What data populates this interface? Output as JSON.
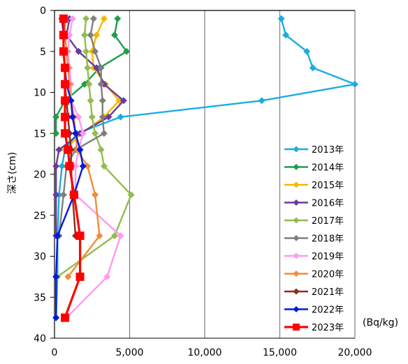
{
  "chart_data": {
    "type": "line",
    "orientation": "vertical-profile",
    "title": "",
    "xlabel": "",
    "ylabel": "深さ(cm)",
    "unit_label": "(Bq/kg)",
    "xlim": [
      0,
      20000
    ],
    "ylim": [
      0,
      40
    ],
    "y_inverted": true,
    "x_ticks": [
      0,
      5000,
      10000,
      15000,
      20000
    ],
    "x_tick_labels": [
      "0",
      "5,000",
      "10,000",
      "15,000",
      "20,000"
    ],
    "y_ticks": [
      0,
      5,
      10,
      15,
      20,
      25,
      30,
      35,
      40
    ],
    "y_tick_labels": [
      "0",
      "5",
      "10",
      "15",
      "20",
      "25",
      "30",
      "35",
      "40"
    ],
    "grid": "vertical",
    "grid_color": "#7f7f7f",
    "legend_position": "right",
    "series": [
      {
        "name": "2013年",
        "color": "#1aade0",
        "marker": "diamond",
        "points": [
          [
            15100,
            1
          ],
          [
            15400,
            3
          ],
          [
            16800,
            5
          ],
          [
            17200,
            7
          ],
          [
            20000,
            9
          ],
          [
            13800,
            11
          ],
          [
            4400,
            13
          ],
          [
            1500,
            15
          ],
          [
            700,
            17
          ],
          [
            500,
            19
          ],
          [
            300,
            22.5
          ],
          [
            200,
            27.5
          ],
          [
            200,
            32.5
          ],
          [
            100,
            37.5
          ]
        ]
      },
      {
        "name": "2014年",
        "color": "#1c9e4b",
        "marker": "diamond",
        "points": [
          [
            4200,
            1
          ],
          [
            4000,
            3
          ],
          [
            4800,
            5
          ],
          [
            3000,
            7
          ],
          [
            2000,
            9
          ],
          [
            700,
            11
          ],
          [
            100,
            13
          ],
          [
            100,
            15
          ]
        ]
      },
      {
        "name": "2015年",
        "color": "#f5b800",
        "marker": "diamond",
        "points": [
          [
            3300,
            1
          ],
          [
            2800,
            3
          ],
          [
            2500,
            5
          ],
          [
            2600,
            7
          ],
          [
            3400,
            9
          ],
          [
            4300,
            11
          ],
          [
            3300,
            13
          ],
          [
            1800,
            15
          ],
          [
            700,
            17
          ]
        ]
      },
      {
        "name": "2016年",
        "color": "#6a3a9c",
        "marker": "diamond",
        "points": [
          [
            1000,
            1
          ],
          [
            800,
            3
          ],
          [
            1600,
            5
          ],
          [
            2800,
            7
          ],
          [
            3300,
            9
          ],
          [
            4600,
            11
          ],
          [
            3600,
            13
          ],
          [
            1700,
            15
          ],
          [
            300,
            17
          ],
          [
            100,
            19
          ],
          [
            100,
            22.5
          ],
          [
            100,
            27.5
          ]
        ]
      },
      {
        "name": "2017年",
        "color": "#92bd4e",
        "marker": "diamond",
        "points": [
          [
            2100,
            1
          ],
          [
            2000,
            3
          ],
          [
            2100,
            5
          ],
          [
            2200,
            7
          ],
          [
            2300,
            9
          ],
          [
            2400,
            11
          ],
          [
            2500,
            13
          ],
          [
            2700,
            15
          ],
          [
            3100,
            17
          ],
          [
            3300,
            19
          ],
          [
            5100,
            22.5
          ],
          [
            4000,
            27.5
          ],
          [
            200,
            32.5
          ]
        ]
      },
      {
        "name": "2018年",
        "color": "#7f7f7f",
        "marker": "diamond",
        "points": [
          [
            2600,
            1
          ],
          [
            2400,
            3
          ],
          [
            2700,
            5
          ],
          [
            3100,
            7
          ],
          [
            3100,
            9
          ],
          [
            3200,
            11
          ],
          [
            3200,
            13
          ],
          [
            3300,
            15
          ],
          [
            1400,
            17
          ],
          [
            800,
            19
          ],
          [
            600,
            22.5
          ],
          [
            300,
            27.5
          ]
        ]
      },
      {
        "name": "2019年",
        "color": "#ff99ee",
        "marker": "diamond",
        "points": [
          [
            1200,
            1
          ],
          [
            1000,
            3
          ],
          [
            900,
            5
          ],
          [
            1000,
            7
          ],
          [
            1100,
            9
          ],
          [
            1100,
            11
          ],
          [
            1600,
            13
          ],
          [
            1900,
            15
          ],
          [
            1600,
            17
          ],
          [
            1400,
            19
          ],
          [
            1400,
            22.5
          ],
          [
            4400,
            27.5
          ],
          [
            3500,
            32.5
          ],
          [
            800,
            37.5
          ]
        ]
      },
      {
        "name": "2020年",
        "color": "#f08c3a",
        "marker": "diamond",
        "points": [
          [
            700,
            1
          ],
          [
            700,
            3
          ],
          [
            800,
            5
          ],
          [
            900,
            7
          ],
          [
            1000,
            9
          ],
          [
            1100,
            11
          ],
          [
            1300,
            13
          ],
          [
            1400,
            15
          ],
          [
            1500,
            17
          ],
          [
            2200,
            19
          ],
          [
            2700,
            22.5
          ],
          [
            3000,
            27.5
          ],
          [
            900,
            32.5
          ]
        ]
      },
      {
        "name": "2021年",
        "color": "#8b2a20",
        "marker": "diamond",
        "points": [
          [
            500,
            1
          ],
          [
            600,
            3
          ],
          [
            600,
            5
          ],
          [
            700,
            7
          ],
          [
            700,
            9
          ],
          [
            800,
            11
          ],
          [
            900,
            13
          ],
          [
            1000,
            15
          ],
          [
            1100,
            17
          ],
          [
            1100,
            19
          ],
          [
            1200,
            22.5
          ],
          [
            1400,
            27.5
          ]
        ]
      },
      {
        "name": "2022年",
        "color": "#0018e0",
        "marker": "diamond",
        "points": [
          [
            500,
            1
          ],
          [
            600,
            3
          ],
          [
            600,
            5
          ],
          [
            700,
            7
          ],
          [
            800,
            9
          ],
          [
            1100,
            11
          ],
          [
            1200,
            13
          ],
          [
            1400,
            15
          ],
          [
            1700,
            17
          ],
          [
            1900,
            19
          ],
          [
            1300,
            22.5
          ],
          [
            200,
            27.5
          ],
          [
            100,
            32.5
          ],
          [
            100,
            37.5
          ]
        ]
      },
      {
        "name": "2023年",
        "color": "#ff0000",
        "marker": "square",
        "points": [
          [
            600,
            1
          ],
          [
            600,
            3
          ],
          [
            600,
            5
          ],
          [
            700,
            7
          ],
          [
            700,
            9
          ],
          [
            700,
            11
          ],
          [
            700,
            13
          ],
          [
            700,
            15
          ],
          [
            900,
            17
          ],
          [
            1000,
            19
          ],
          [
            1300,
            22.5
          ],
          [
            1700,
            27.5
          ],
          [
            1700,
            32.5
          ],
          [
            700,
            37.5
          ]
        ]
      }
    ]
  }
}
